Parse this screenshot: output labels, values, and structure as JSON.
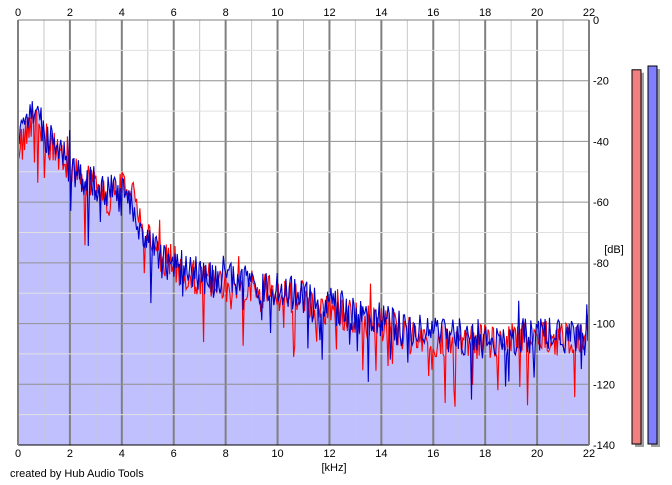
{
  "chart_data": {
    "type": "line",
    "xlabel": "[kHz]",
    "ylabel": "[dB]",
    "xlim": [
      0,
      22
    ],
    "ylim": [
      -140,
      0
    ],
    "x_ticks": [
      0,
      2,
      4,
      6,
      8,
      10,
      12,
      14,
      16,
      18,
      20,
      22
    ],
    "x_tick_labels": [
      "0",
      "2",
      "4",
      "6",
      "8",
      "10",
      "12",
      "14",
      "16",
      "18",
      "20",
      "22"
    ],
    "y_ticks": [
      0,
      -20,
      -40,
      -60,
      -80,
      -100,
      -120,
      -140
    ],
    "y_tick_labels": [
      "0",
      "-20",
      "-40",
      "-60",
      "-80",
      "-100",
      "-120",
      "-140"
    ],
    "grid": true,
    "fill_under": true,
    "fill_color": "#c0c0ff",
    "series": [
      {
        "color": "#ff0000",
        "x": [
          0,
          0.25,
          0.5,
          0.75,
          1,
          1.5,
          2,
          2.5,
          3,
          3.5,
          4,
          4.5,
          5,
          5.5,
          6,
          6.5,
          7,
          7.5,
          8,
          8.5,
          9,
          9.5,
          10,
          10.5,
          11,
          11.5,
          12,
          12.5,
          13,
          13.5,
          14,
          14.5,
          15,
          15.5,
          16,
          16.5,
          17,
          17.5,
          18,
          18.5,
          19,
          19.5,
          20,
          20.5,
          21,
          21.5,
          22
        ],
        "y": [
          -45,
          -38,
          -34,
          -32,
          -38,
          -44,
          -50,
          -53,
          -55,
          -59,
          -55,
          -60,
          -72,
          -78,
          -80,
          -84,
          -86,
          -88,
          -87,
          -86,
          -87,
          -89,
          -90,
          -91,
          -92,
          -94,
          -95,
          -97,
          -98,
          -99,
          -100,
          -101,
          -103,
          -104,
          -105,
          -106,
          -105,
          -106,
          -106,
          -107,
          -106,
          -105,
          -104,
          -104,
          -105,
          -106,
          -105
        ]
      },
      {
        "color": "#0000c8",
        "x": [
          0,
          0.25,
          0.5,
          0.75,
          1,
          1.5,
          2,
          2.5,
          3,
          3.5,
          4,
          4.5,
          5,
          5.5,
          6,
          6.5,
          7,
          7.5,
          8,
          8.5,
          9,
          9.5,
          10,
          10.5,
          11,
          11.5,
          12,
          12.5,
          13,
          13.5,
          14,
          14.5,
          15,
          15.5,
          16,
          16.5,
          17,
          17.5,
          18,
          18.5,
          19,
          19.5,
          20,
          20.5,
          21,
          21.5,
          22
        ],
        "y": [
          -42,
          -36,
          -30,
          -28,
          -37,
          -43,
          -48,
          -52,
          -54,
          -57,
          -52,
          -62,
          -74,
          -79,
          -81,
          -82,
          -84,
          -86,
          -86,
          -86,
          -87,
          -88,
          -88,
          -90,
          -91,
          -93,
          -94,
          -96,
          -97,
          -99,
          -99,
          -101,
          -102,
          -103,
          -104,
          -104,
          -105,
          -104,
          -105,
          -105,
          -105,
          -104,
          -104,
          -104,
          -104,
          -104,
          -105
        ]
      }
    ]
  },
  "meters": [
    {
      "level": 0.99,
      "color": "#f08080",
      "border": "#000000",
      "shadow": "#a0a0a0"
    },
    {
      "level": 1.0,
      "color": "#8080ff",
      "border": "#000000",
      "shadow": "#a0a0a0"
    }
  ],
  "footer": {
    "credit": "created by Hub Audio Tools"
  }
}
